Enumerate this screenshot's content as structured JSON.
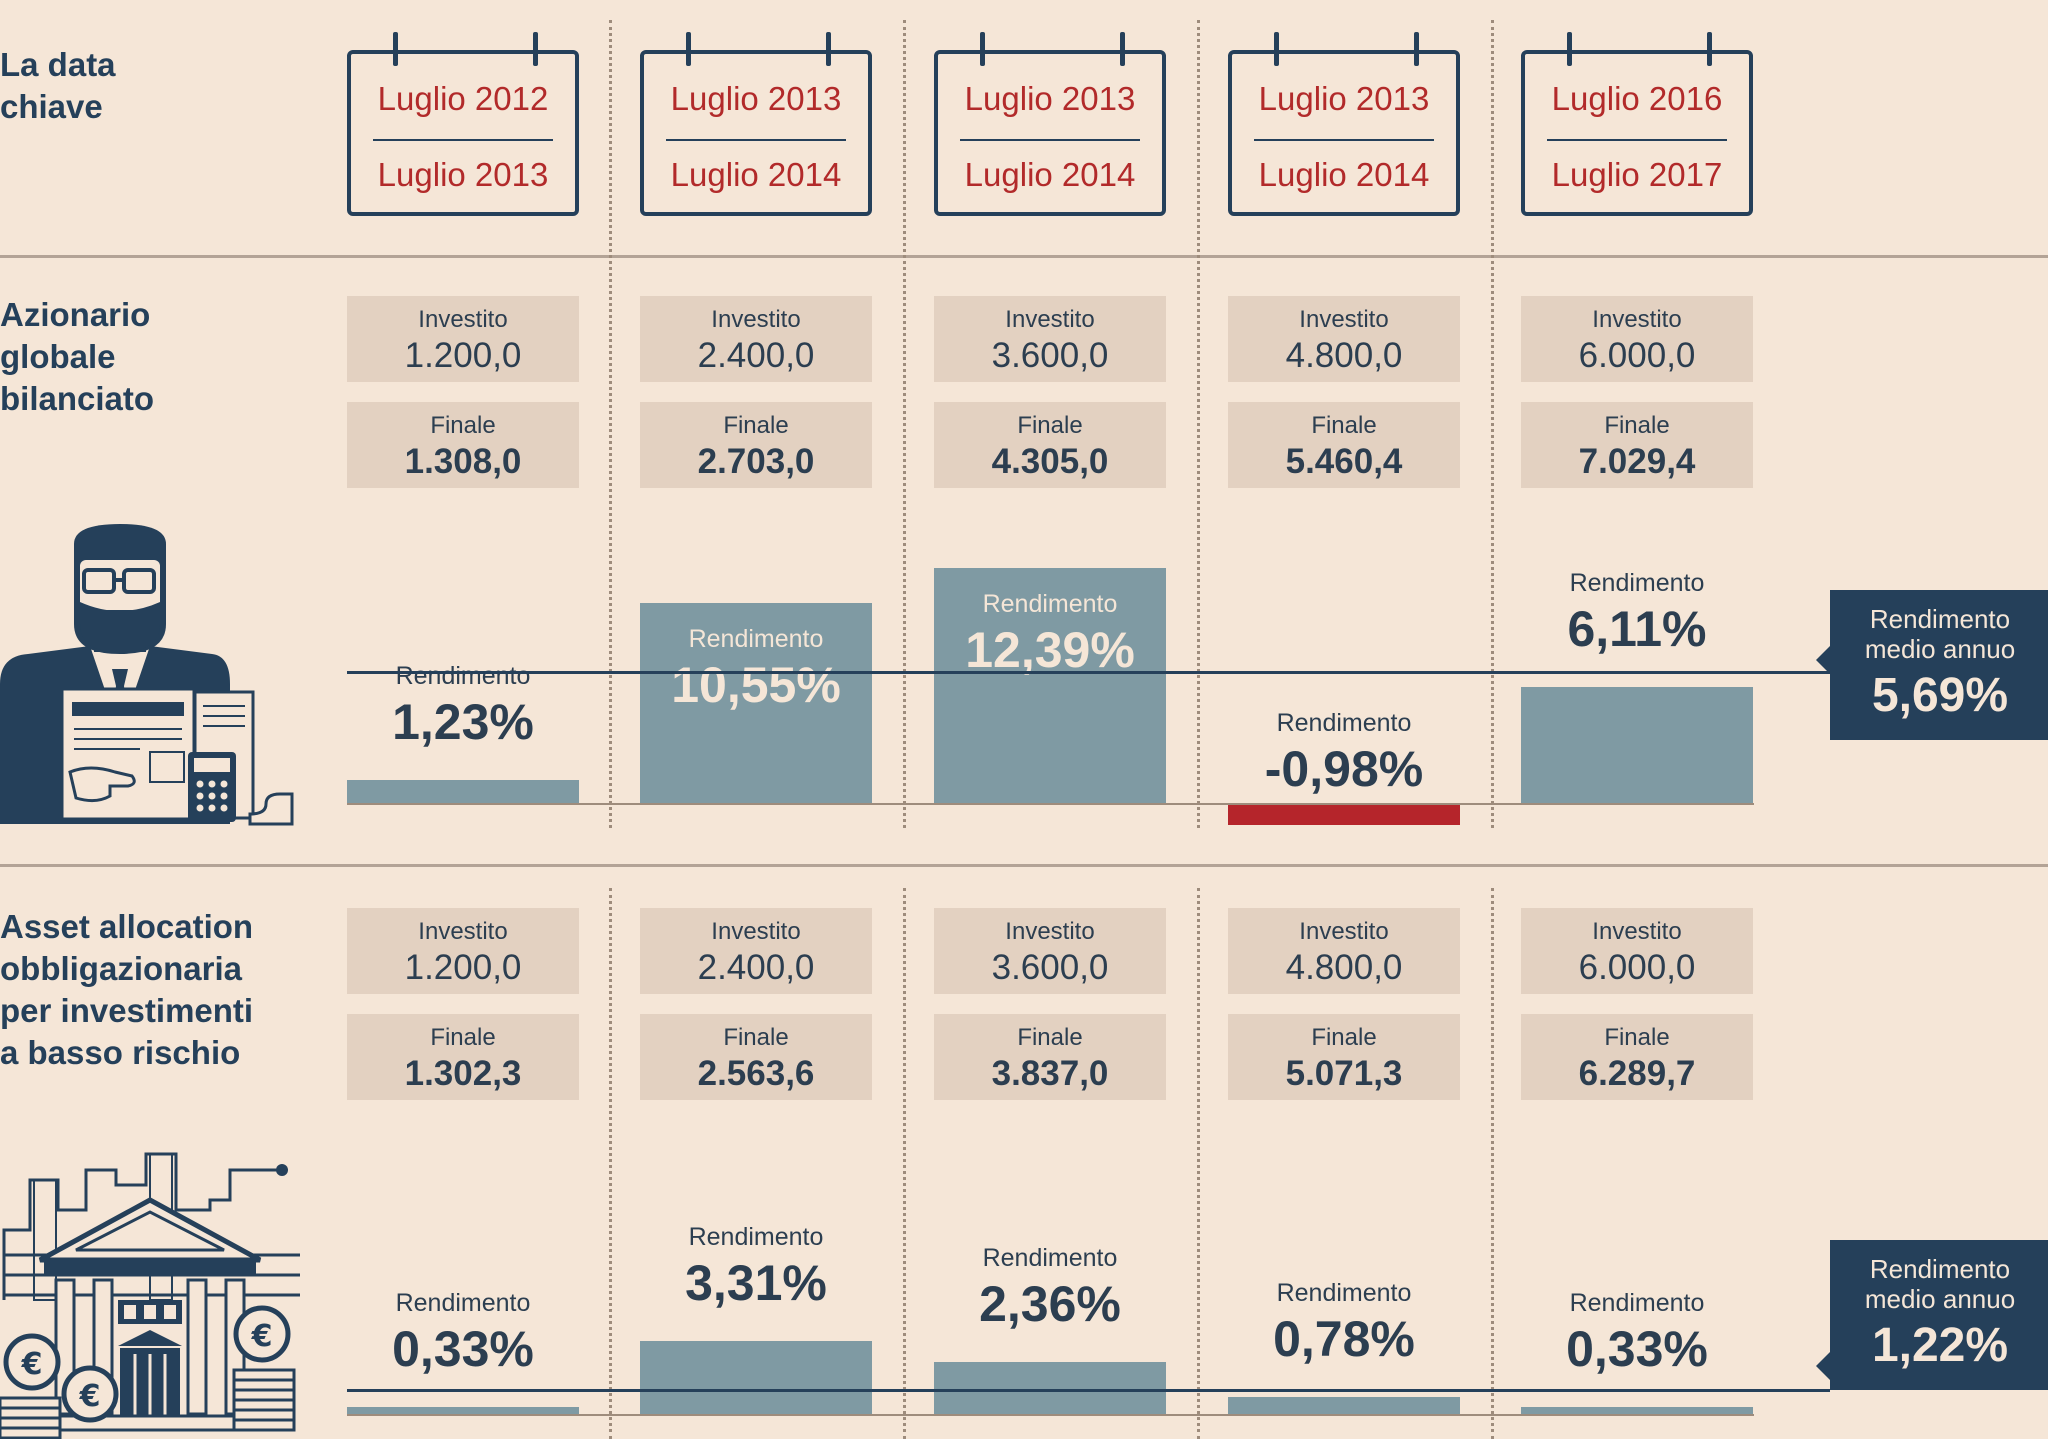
{
  "headings": {
    "date_key": "La data\nchiave",
    "section1": "Azionario\nglobale\nbilanciato",
    "section2": "Asset allocation\nobbligazionaria\nper investimenti\na basso rischio"
  },
  "periods": [
    {
      "from": "Luglio 2012",
      "to": "Luglio 2013"
    },
    {
      "from": "Luglio 2013",
      "to": "Luglio 2014"
    },
    {
      "from": "Luglio 2013",
      "to": "Luglio 2014"
    },
    {
      "from": "Luglio 2013",
      "to": "Luglio 2014"
    },
    {
      "from": "Luglio 2016",
      "to": "Luglio 2017"
    }
  ],
  "labels": {
    "invested": "Investito",
    "final": "Finale",
    "return": "Rendimento",
    "avg_return": "Rendimento\nmedio annuo"
  },
  "colors": {
    "positive_bar": "#7f9aa3",
    "negative_bar": "#b5252b",
    "date_text": "#b22a2a",
    "dark": "#25405a",
    "background": "#f5e6d7"
  },
  "chart_data": [
    {
      "type": "bar",
      "title": "Azionario globale bilanciato",
      "categories": [
        "Luglio 2012 - Luglio 2013",
        "Luglio 2013 - Luglio 2014",
        "Luglio 2013 - Luglio 2014",
        "Luglio 2013 - Luglio 2014",
        "Luglio 2016 - Luglio 2017"
      ],
      "invested": [
        "1.200,0",
        "2.400,0",
        "3.600,0",
        "4.800,0",
        "6.000,0"
      ],
      "final": [
        "1.308,0",
        "2.703,0",
        "4.305,0",
        "5.460,4",
        "7.029,4"
      ],
      "values": [
        1.23,
        10.55,
        12.39,
        -0.98,
        6.11
      ],
      "value_labels": [
        "1,23%",
        "10,55%",
        "12,39%",
        "-0,98%",
        "6,11%"
      ],
      "average": 5.69,
      "average_label": "5,69%"
    },
    {
      "type": "bar",
      "title": "Asset allocation obbligazionaria per investimenti a basso rischio",
      "categories": [
        "Luglio 2012 - Luglio 2013",
        "Luglio 2013 - Luglio 2014",
        "Luglio 2013 - Luglio 2014",
        "Luglio 2013 - Luglio 2014",
        "Luglio 2016 - Luglio 2017"
      ],
      "invested": [
        "1.200,0",
        "2.400,0",
        "3.600,0",
        "4.800,0",
        "6.000,0"
      ],
      "final": [
        "1.302,3",
        "2.563,6",
        "3.837,0",
        "5.071,3",
        "6.289,7"
      ],
      "values": [
        0.33,
        3.31,
        2.36,
        0.78,
        0.33
      ],
      "value_labels": [
        "0,33%",
        "3,31%",
        "2,36%",
        "0,78%",
        "0,33%"
      ],
      "average": 1.22,
      "average_label": "1,22%"
    }
  ]
}
